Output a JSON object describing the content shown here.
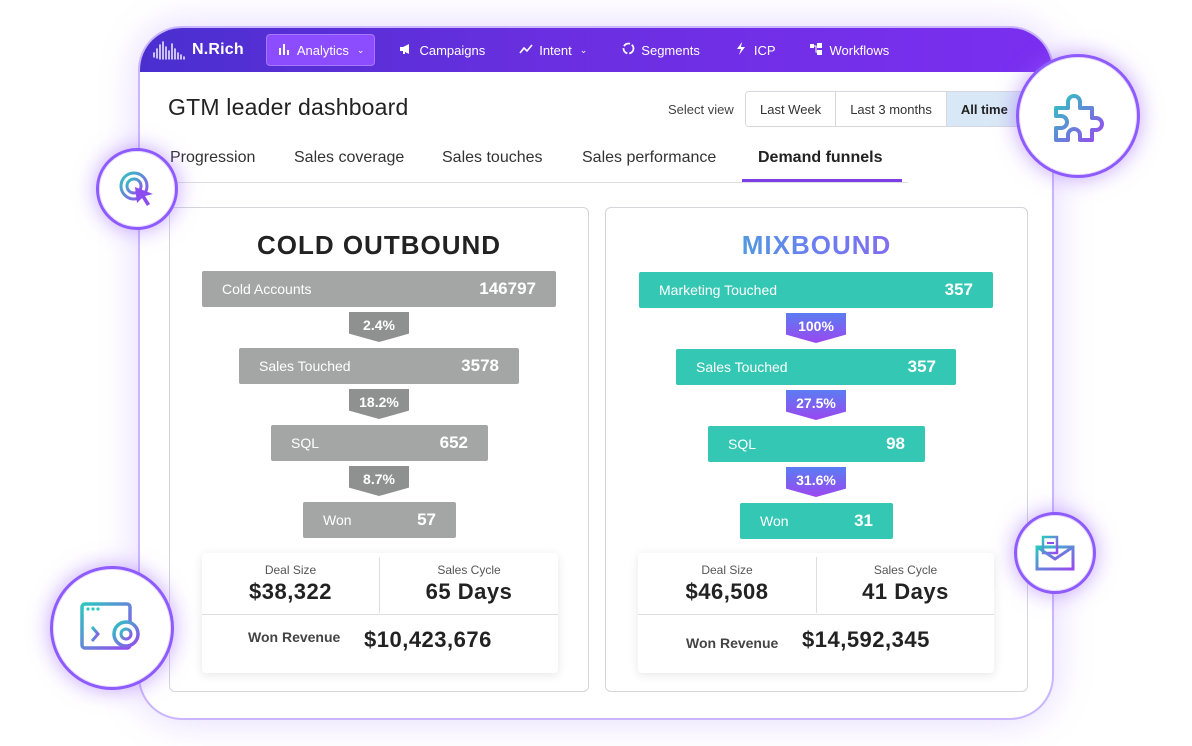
{
  "app": {
    "brand": "N.Rich"
  },
  "nav": {
    "items": [
      {
        "label": "Analytics",
        "icon": "bar-chart-icon",
        "glyph": "▮",
        "caret": "⌄"
      },
      {
        "label": "Campaigns",
        "icon": "megaphone-icon",
        "glyph": "📢"
      },
      {
        "label": "Intent",
        "icon": "trend-icon",
        "glyph": "↗",
        "caret": "⌄"
      },
      {
        "label": "Segments",
        "icon": "segments-icon",
        "glyph": "◌"
      },
      {
        "label": "ICP",
        "icon": "bolt-icon",
        "glyph": "ϟ"
      },
      {
        "label": "Workflows",
        "icon": "workflow-icon",
        "glyph": "⊞"
      }
    ]
  },
  "header": {
    "title": "GTM leader dashboard",
    "select_view_label": "Select view",
    "views": [
      "Last Week",
      "Last 3 months",
      "All time"
    ],
    "active_view": "All time"
  },
  "tabs": [
    "Progression",
    "Sales coverage",
    "Sales touches",
    "Sales performance",
    "Demand funnels"
  ],
  "active_tab": "Demand funnels",
  "colors": {
    "accent": "#7b3fe4",
    "teal": "#33c7b4",
    "gray": "#a4a6a6"
  },
  "funnels": {
    "cold": {
      "title": "COLD OUTBOUND",
      "stages": [
        {
          "label": "Cold Accounts",
          "value": "146797"
        },
        {
          "label": "Sales Touched",
          "value": "3578"
        },
        {
          "label": "SQL",
          "value": "652"
        },
        {
          "label": "Won",
          "value": "57"
        }
      ],
      "rates": [
        "2.4%",
        "18.2%",
        "8.7%"
      ],
      "deal_size_label": "Deal Size",
      "deal_size": "$38,322",
      "sales_cycle_label": "Sales Cycle",
      "sales_cycle": "65 Days",
      "won_revenue_label": "Won Revenue",
      "won_revenue": "$10,423,676"
    },
    "mix": {
      "title": "MIXBOUND",
      "stages": [
        {
          "label": "Marketing Touched",
          "value": "357"
        },
        {
          "label": "Sales Touched",
          "value": "357"
        },
        {
          "label": "SQL",
          "value": "98"
        },
        {
          "label": "Won",
          "value": "31"
        }
      ],
      "rates": [
        "100%",
        "27.5%",
        "31.6%"
      ],
      "deal_size_label": "Deal Size",
      "deal_size": "$46,508",
      "sales_cycle_label": "Sales Cycle",
      "sales_cycle": "41 Days",
      "won_revenue_label": "Won Revenue",
      "won_revenue": "$14,592,345"
    }
  },
  "badges": [
    "target-cursor-icon",
    "puzzle-icon",
    "browser-target-icon",
    "envelope-icon"
  ]
}
